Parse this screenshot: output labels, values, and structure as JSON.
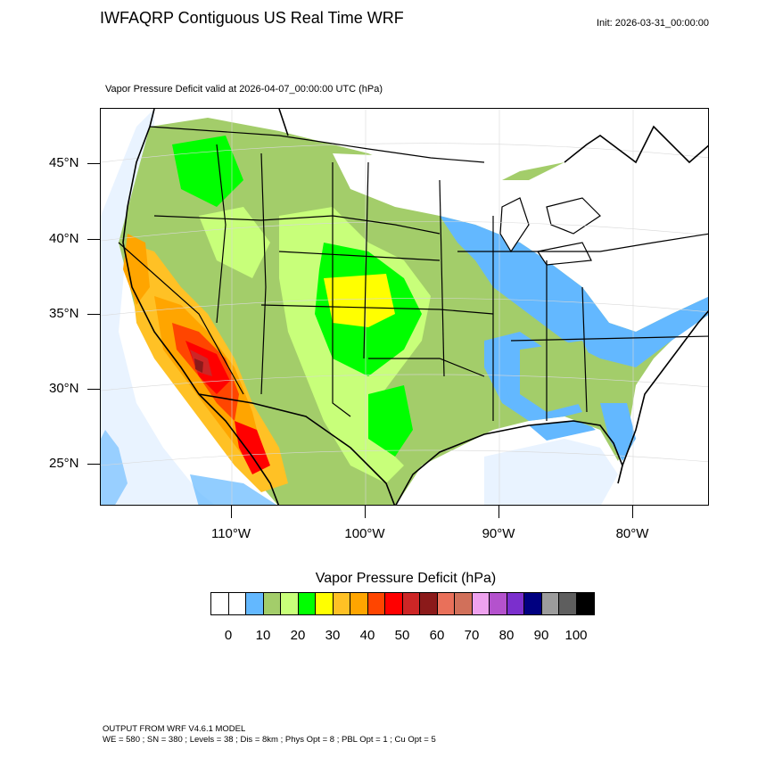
{
  "header": {
    "title": "IWFAQRP Contiguous US Real Time WRF",
    "init": "Init: 2026-03-31_00:00:00",
    "subtitle": "Vapor Pressure Deficit valid at 2026-04-07_00:00:00 UTC   (hPa)"
  },
  "axes": {
    "lat_labels": [
      "45°N",
      "40°N",
      "35°N",
      "30°N",
      "25°N"
    ],
    "lon_labels": [
      "110°W",
      "100°W",
      "90°W",
      "80°W"
    ]
  },
  "colorbar": {
    "title": "Vapor Pressure Deficit  (hPa)",
    "colors": [
      "#ffffff",
      "#ffffff",
      "#63b8ff",
      "#a3cd6a",
      "#c8ff7a",
      "#00ff00",
      "#ffff00",
      "#ffc125",
      "#ffa500",
      "#ff4500",
      "#ff0000",
      "#cd2626",
      "#8b1a1a",
      "#e9705a",
      "#d1705a",
      "#eea2ee",
      "#b452cd",
      "#7b2fcd",
      "#000080",
      "#9c9c9c",
      "#5e5e5e",
      "#000000"
    ],
    "tick_labels": [
      "0",
      "10",
      "20",
      "30",
      "40",
      "50",
      "60",
      "70",
      "80",
      "90",
      "100"
    ]
  },
  "footer": {
    "line1": "OUTPUT FROM WRF V4.6.1 MODEL",
    "line2": "WE = 580 ; SN = 380 ; Levels = 38 ; Dis = 8km ; Phys Opt = 8 ; PBL Opt = 1 ; Cu Opt = 5"
  }
}
